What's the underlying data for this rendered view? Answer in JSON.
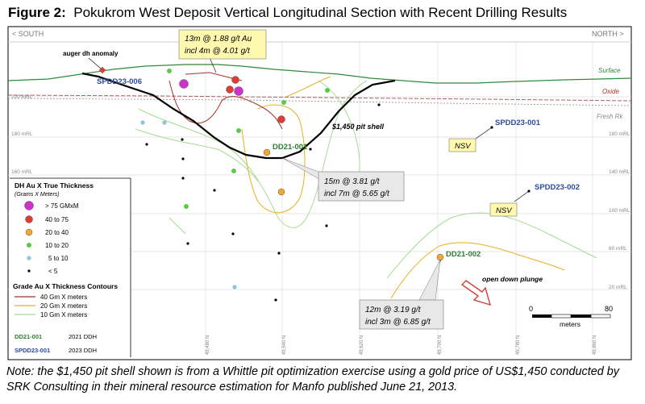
{
  "figure": {
    "label": "Figure 2:",
    "title": "Pokukrom West Deposit Vertical Longitudinal Section with Recent Drilling Results",
    "note": "Note: the $1,450 pit shell shown is from a Whittle pit optimization exercise using a gold price of US$1,450 conducted by SRK Consulting in their mineral resource estimation for Manfo published June 21, 2013."
  },
  "section": {
    "south": "< SOUTH",
    "north": "NORTH >",
    "surface": "Surface",
    "oxide": "Oxide",
    "fresh_rock": "Fresh Rk",
    "pit_shell": "$1,450 pit shell",
    "auger_anomaly": "auger dh anomaly",
    "open_down_plunge": "open down plunge",
    "elevations": [
      "220 mRL",
      "180 mRL",
      "160 mRL",
      "140 mRL",
      "100 mRL",
      "60 mRL",
      "20 mRL"
    ],
    "northings": [
      "49,480 N",
      "49,540 N",
      "49,620 N",
      "49,700 N",
      "49,780 N",
      "49,860 N"
    ]
  },
  "holes": [
    {
      "name": "SPDD23-006",
      "type": "2023"
    },
    {
      "name": "DD21-001",
      "type": "2021"
    },
    {
      "name": "SPDD23-001",
      "type": "2023"
    },
    {
      "name": "SPDD23-002",
      "type": "2023"
    },
    {
      "name": "DD21-002",
      "type": "2021"
    }
  ],
  "callouts": [
    {
      "line1": "13m @ 1.88 g/t Au",
      "line2": "incl 4m @ 4.01 g/t"
    },
    {
      "line1": "15m @ 3.81 g/t",
      "line2": "incl 7m @ 5.65 g/t"
    },
    {
      "line1": "12m @ 3.19 g/t",
      "line2": "incl 3m @ 6.85 g/t"
    }
  ],
  "nsv": [
    "NSV",
    "NSV"
  ],
  "legend": {
    "title": "DH Au X True Thickness",
    "subtitle": "(Grams X Meters)",
    "classes": [
      {
        "label": "> 75 GMxM",
        "color": "#cc33cc"
      },
      {
        "label": "40 to 75",
        "color": "#e03c31"
      },
      {
        "label": "20 to 40",
        "color": "#f0a830"
      },
      {
        "label": "10 to 20",
        "color": "#5cc94a"
      },
      {
        "label": "5 to 10",
        "color": "#8fc3e3"
      },
      {
        "label": "< 5",
        "color": "#000000"
      }
    ],
    "contours_title": "Grade Au X Thickness Contours",
    "contours": [
      {
        "label": "40 Gm X meters",
        "color": "#a93226"
      },
      {
        "label": "20 Gm X meters",
        "color": "#e6b020"
      },
      {
        "label": "10 Gm X meters",
        "color": "#a6dc90"
      }
    ],
    "holes": [
      {
        "name": "DD21-001",
        "label": "2021 DDH",
        "color": "#2e7d32"
      },
      {
        "name": "SPDD23-001",
        "label": "2023 DDH",
        "color": "#2c4aa0"
      }
    ]
  },
  "scale": {
    "start": "0",
    "end": "80",
    "unit": "meters"
  }
}
